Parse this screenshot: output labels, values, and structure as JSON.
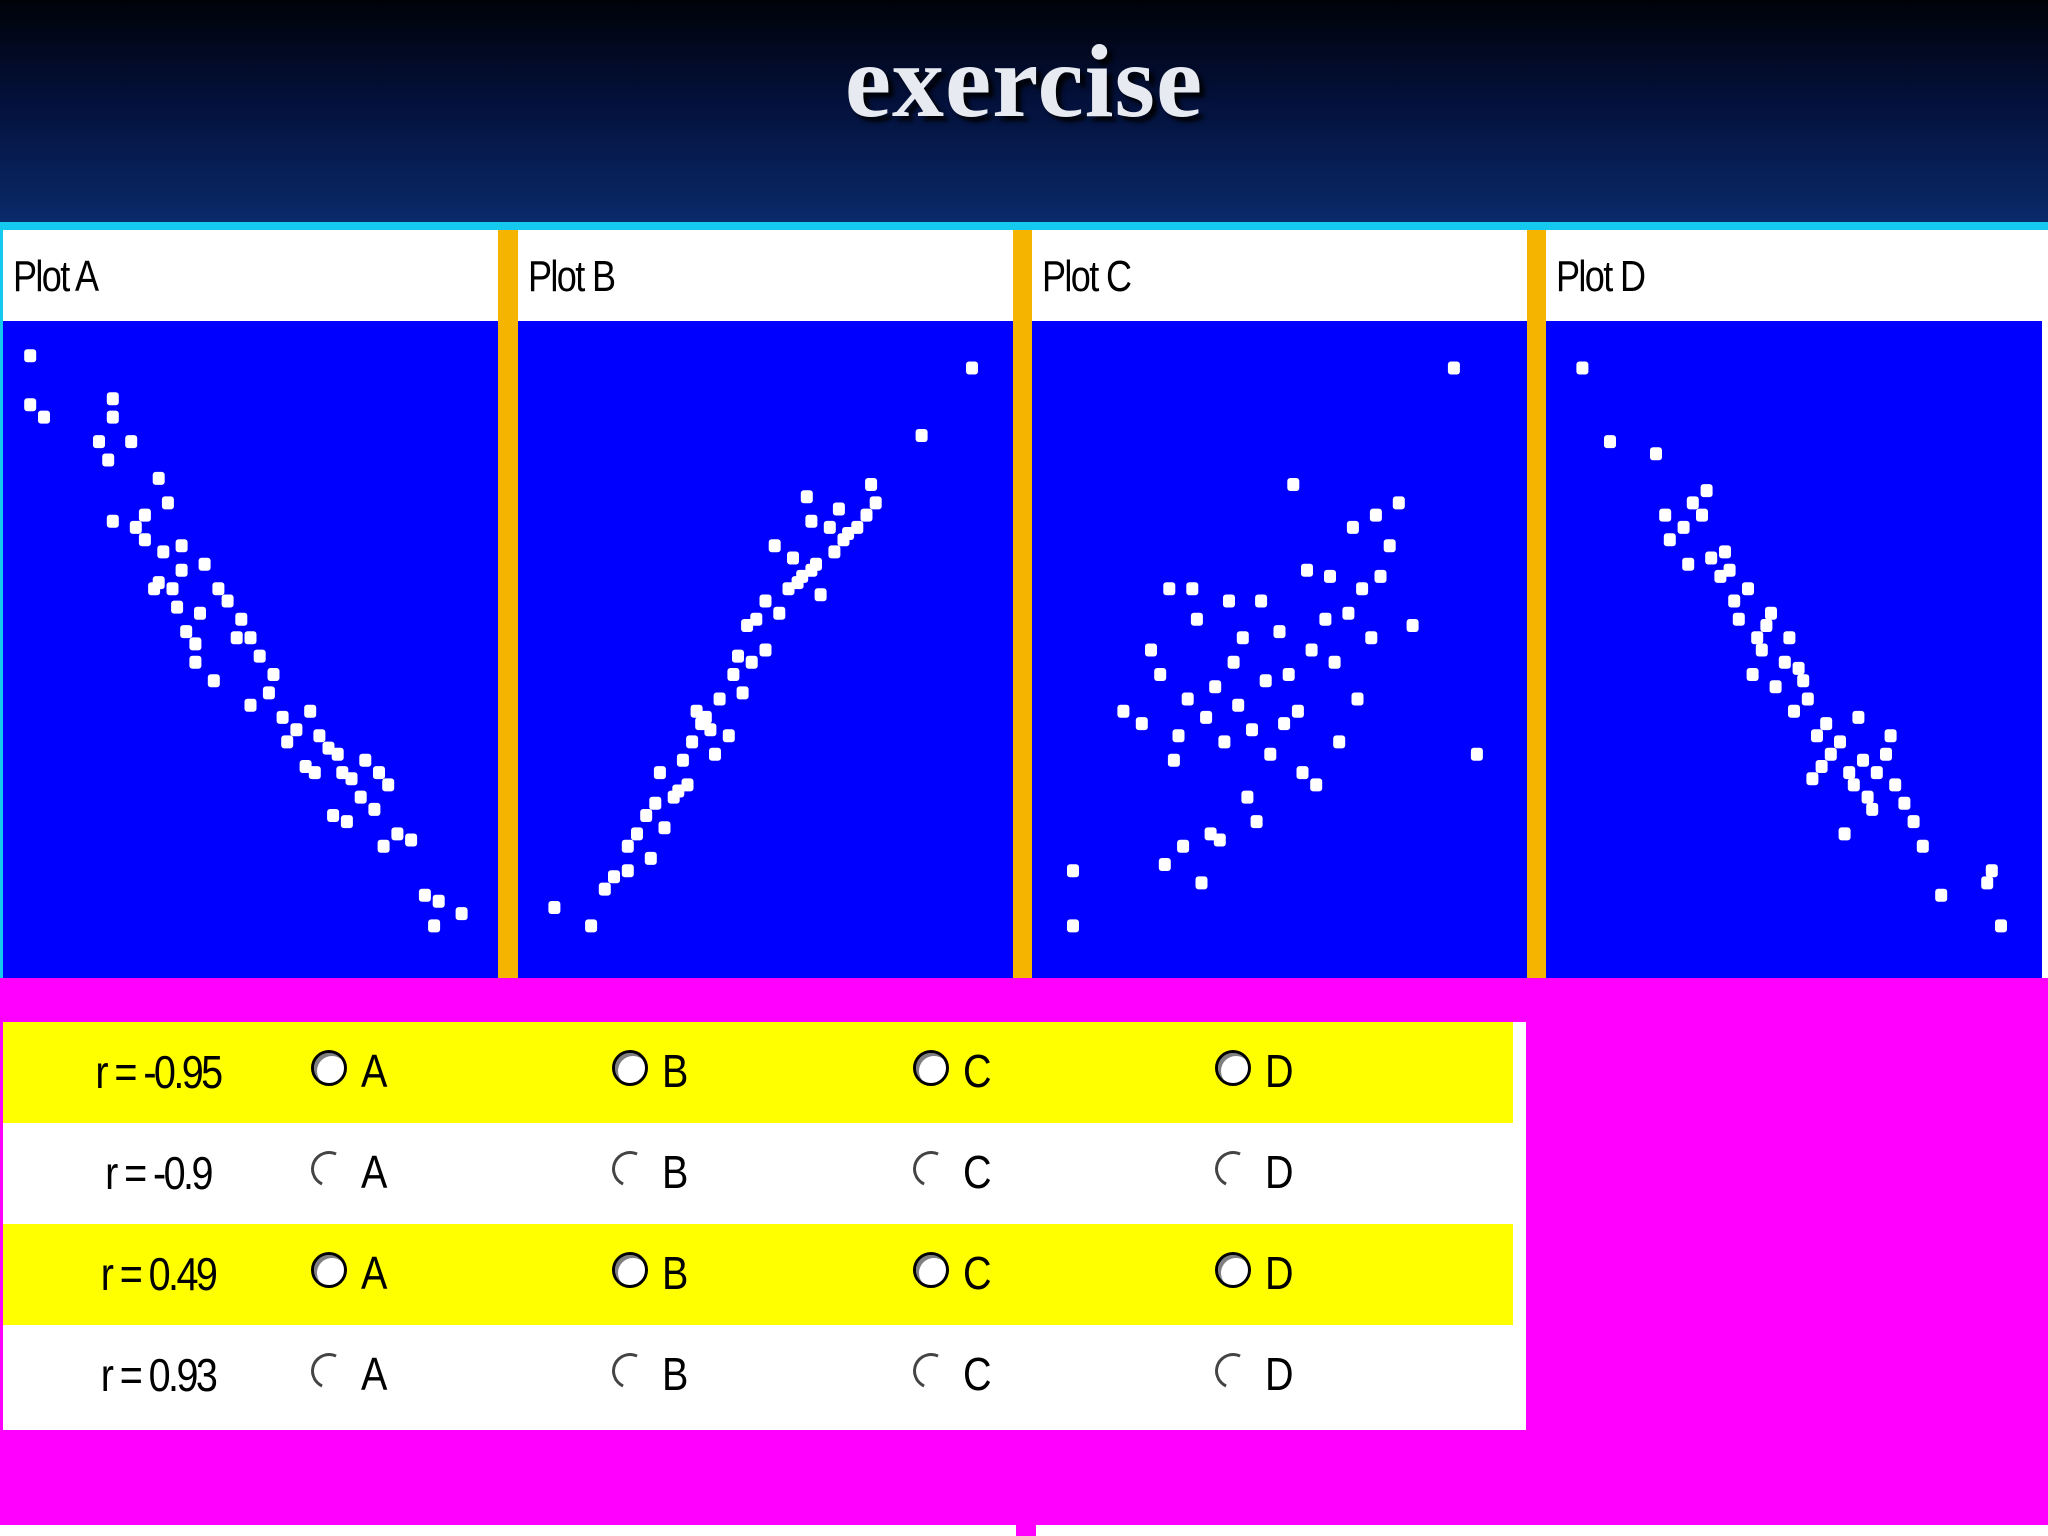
{
  "slide": {
    "title": "exercise"
  },
  "plots": [
    {
      "label": "Plot A"
    },
    {
      "label": "Plot B"
    },
    {
      "label": "Plot C"
    },
    {
      "label": "Plot D"
    }
  ],
  "questions": [
    {
      "label": "r = -0.95",
      "options": [
        "A",
        "B",
        "C",
        "D"
      ]
    },
    {
      "label": "r = -0.9",
      "options": [
        "A",
        "B",
        "C",
        "D"
      ]
    },
    {
      "label": "r = 0.49",
      "options": [
        "A",
        "B",
        "C",
        "D"
      ]
    },
    {
      "label": "r = 0.93",
      "options": [
        "A",
        "B",
        "C",
        "D"
      ]
    }
  ],
  "colors": {
    "plot_bg": "#0000ff",
    "points": "#ffffff",
    "panel_divider": "#f5b400",
    "page_bg": "#ff00ff",
    "row_highlight": "#ffff00",
    "header_line": "#14c8f0"
  },
  "chart_data": [
    {
      "type": "scatter",
      "title": "Plot A",
      "x": [
        0.02,
        0.02,
        0.05,
        0.2,
        0.2,
        0.24,
        0.17,
        0.19,
        0.3,
        0.32,
        0.27,
        0.25,
        0.2,
        0.27,
        0.31,
        0.35,
        0.35,
        0.33,
        0.3,
        0.4,
        0.43,
        0.39,
        0.34,
        0.36,
        0.29,
        0.38,
        0.45,
        0.5,
        0.48,
        0.52,
        0.55,
        0.5,
        0.54,
        0.57,
        0.6,
        0.63,
        0.58,
        0.65,
        0.67,
        0.69,
        0.7,
        0.72,
        0.75,
        0.78,
        0.8,
        0.77,
        0.74,
        0.68,
        0.71,
        0.64,
        0.62,
        0.82,
        0.85,
        0.88,
        0.9,
        0.96,
        0.91,
        0.79,
        0.42,
        0.38,
        0.47
      ],
      "y": [
        0.98,
        0.9,
        0.88,
        0.91,
        0.88,
        0.84,
        0.84,
        0.81,
        0.78,
        0.74,
        0.72,
        0.7,
        0.71,
        0.68,
        0.66,
        0.67,
        0.63,
        0.6,
        0.61,
        0.64,
        0.6,
        0.56,
        0.57,
        0.53,
        0.6,
        0.51,
        0.58,
        0.52,
        0.55,
        0.49,
        0.46,
        0.41,
        0.43,
        0.39,
        0.37,
        0.4,
        0.35,
        0.36,
        0.34,
        0.33,
        0.3,
        0.29,
        0.32,
        0.3,
        0.28,
        0.24,
        0.26,
        0.23,
        0.22,
        0.3,
        0.31,
        0.2,
        0.19,
        0.1,
        0.05,
        0.07,
        0.09,
        0.18,
        0.45,
        0.48,
        0.52
      ]
    },
    {
      "type": "scatter",
      "title": "Plot B",
      "x": [
        0.04,
        0.12,
        0.17,
        0.2,
        0.2,
        0.22,
        0.24,
        0.26,
        0.28,
        0.3,
        0.27,
        0.32,
        0.34,
        0.33,
        0.36,
        0.35,
        0.38,
        0.4,
        0.43,
        0.45,
        0.47,
        0.42,
        0.5,
        0.48,
        0.5,
        0.53,
        0.55,
        0.58,
        0.56,
        0.6,
        0.62,
        0.65,
        0.67,
        0.64,
        0.7,
        0.72,
        0.74,
        0.68,
        0.73,
        0.6,
        0.59,
        0.52,
        0.44,
        0.39,
        0.25,
        0.15,
        0.84,
        0.95,
        0.37,
        0.46,
        0.57,
        0.61,
        0.66,
        0.31
      ],
      "y": [
        0.08,
        0.05,
        0.13,
        0.14,
        0.18,
        0.2,
        0.23,
        0.25,
        0.21,
        0.26,
        0.3,
        0.32,
        0.35,
        0.28,
        0.38,
        0.4,
        0.37,
        0.42,
        0.46,
        0.43,
        0.48,
        0.36,
        0.5,
        0.55,
        0.58,
        0.56,
        0.6,
        0.62,
        0.65,
        0.63,
        0.59,
        0.66,
        0.68,
        0.7,
        0.7,
        0.72,
        0.74,
        0.69,
        0.77,
        0.71,
        0.75,
        0.67,
        0.49,
        0.33,
        0.16,
        0.11,
        0.85,
        0.96,
        0.39,
        0.54,
        0.61,
        0.64,
        0.73,
        0.27
      ]
    },
    {
      "type": "scatter",
      "title": "Plot C",
      "x": [
        0.05,
        0.05,
        0.16,
        0.2,
        0.22,
        0.24,
        0.27,
        0.28,
        0.3,
        0.32,
        0.31,
        0.34,
        0.36,
        0.38,
        0.4,
        0.42,
        0.41,
        0.44,
        0.46,
        0.47,
        0.5,
        0.52,
        0.54,
        0.57,
        0.6,
        0.62,
        0.61,
        0.65,
        0.68,
        0.7,
        0.72,
        0.74,
        0.67,
        0.63,
        0.55,
        0.58,
        0.45,
        0.35,
        0.29,
        0.25,
        0.33,
        0.37,
        0.43,
        0.48,
        0.51,
        0.66,
        0.71,
        0.76,
        0.79,
        0.93,
        0.88,
        0.53,
        0.39,
        0.26,
        0.56
      ],
      "y": [
        0.05,
        0.14,
        0.4,
        0.38,
        0.5,
        0.46,
        0.32,
        0.36,
        0.42,
        0.55,
        0.6,
        0.39,
        0.44,
        0.35,
        0.48,
        0.52,
        0.41,
        0.37,
        0.58,
        0.45,
        0.53,
        0.46,
        0.4,
        0.5,
        0.55,
        0.48,
        0.62,
        0.56,
        0.6,
        0.52,
        0.62,
        0.67,
        0.42,
        0.35,
        0.3,
        0.28,
        0.22,
        0.2,
        0.18,
        0.15,
        0.12,
        0.19,
        0.26,
        0.33,
        0.38,
        0.7,
        0.72,
        0.74,
        0.54,
        0.33,
        0.96,
        0.77,
        0.58,
        0.6,
        0.63
      ]
    },
    {
      "type": "scatter",
      "title": "Plot D",
      "x": [
        0.04,
        0.1,
        0.2,
        0.22,
        0.23,
        0.26,
        0.28,
        0.3,
        0.32,
        0.34,
        0.35,
        0.37,
        0.38,
        0.4,
        0.42,
        0.43,
        0.45,
        0.46,
        0.48,
        0.5,
        0.52,
        0.53,
        0.55,
        0.57,
        0.58,
        0.6,
        0.62,
        0.63,
        0.65,
        0.66,
        0.68,
        0.7,
        0.72,
        0.74,
        0.76,
        0.78,
        0.67,
        0.61,
        0.56,
        0.51,
        0.44,
        0.41,
        0.36,
        0.31,
        0.27,
        0.82,
        0.92,
        0.95,
        0.93,
        0.71,
        0.64,
        0.54,
        0.49
      ],
      "y": [
        0.96,
        0.84,
        0.82,
        0.72,
        0.68,
        0.7,
        0.74,
        0.72,
        0.65,
        0.62,
        0.66,
        0.58,
        0.55,
        0.6,
        0.52,
        0.5,
        0.56,
        0.44,
        0.48,
        0.4,
        0.45,
        0.42,
        0.36,
        0.38,
        0.33,
        0.35,
        0.3,
        0.28,
        0.32,
        0.26,
        0.3,
        0.33,
        0.28,
        0.25,
        0.22,
        0.18,
        0.24,
        0.2,
        0.31,
        0.47,
        0.54,
        0.46,
        0.63,
        0.76,
        0.64,
        0.1,
        0.12,
        0.05,
        0.14,
        0.36,
        0.39,
        0.29,
        0.52
      ]
    }
  ]
}
